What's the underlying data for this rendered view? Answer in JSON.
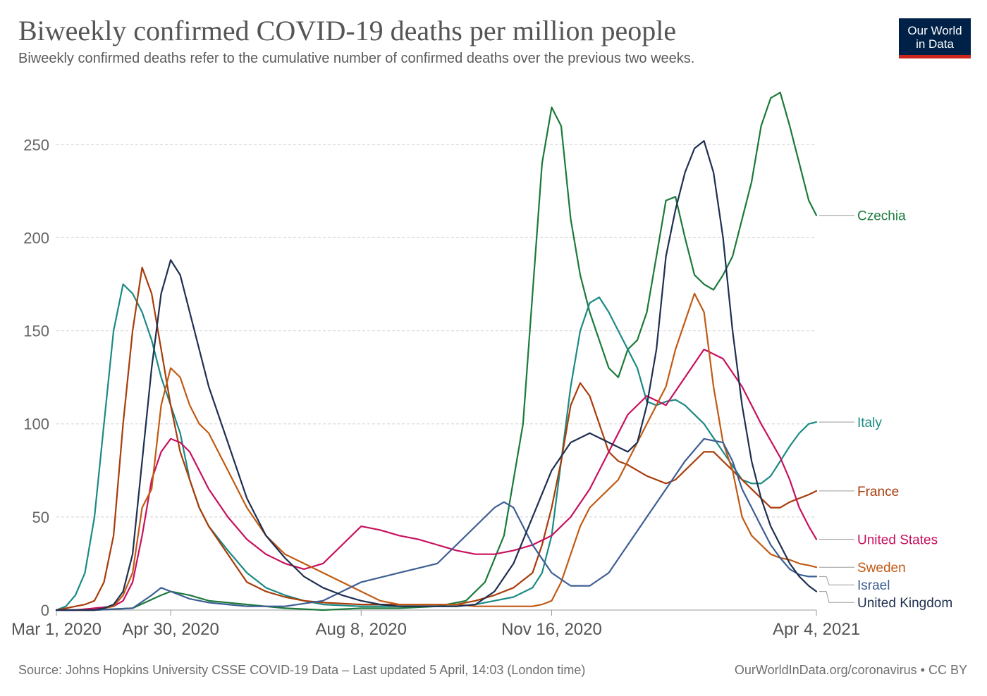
{
  "header": {
    "title": "Biweekly confirmed COVID-19 deaths per million people",
    "subtitle": "Biweekly confirmed deaths refer to the cumulative number of confirmed deaths over the previous two weeks."
  },
  "logo": {
    "line1": "Our World",
    "line2": "in Data"
  },
  "footer": {
    "source": "Source: Johns Hopkins University CSSE COVID-19 Data – Last updated 5 April, 14:03 (London time)",
    "credit": "OurWorldInData.org/coronavirus • CC BY"
  },
  "chart_data": {
    "type": "line",
    "title": "Biweekly confirmed COVID-19 deaths per million people",
    "xlabel": "",
    "ylabel": "",
    "x_unit": "days since Mar 1, 2020",
    "xlim": [
      0,
      399
    ],
    "ylim": [
      0,
      280
    ],
    "yticks": [
      0,
      50,
      100,
      150,
      200,
      250
    ],
    "xticks": [
      {
        "day": 0,
        "label": "Mar 1, 2020"
      },
      {
        "day": 60,
        "label": "Apr 30, 2020"
      },
      {
        "day": 160,
        "label": "Aug 8, 2020"
      },
      {
        "day": 260,
        "label": "Nov 16, 2020"
      },
      {
        "day": 399,
        "label": "Apr 4, 2021"
      }
    ],
    "grid": true,
    "series": [
      {
        "name": "Czechia",
        "color": "#1a7a3a",
        "x": [
          0,
          20,
          40,
          55,
          60,
          70,
          80,
          100,
          120,
          140,
          160,
          180,
          200,
          215,
          225,
          235,
          245,
          250,
          255,
          260,
          265,
          270,
          275,
          280,
          285,
          290,
          295,
          300,
          305,
          310,
          315,
          320,
          325,
          330,
          335,
          340,
          345,
          350,
          355,
          360,
          365,
          370,
          375,
          380,
          385,
          390,
          395,
          399
        ],
        "y": [
          0,
          0,
          1,
          8,
          10,
          8,
          5,
          3,
          1,
          0,
          1,
          1,
          2,
          5,
          15,
          40,
          100,
          170,
          240,
          270,
          260,
          210,
          180,
          160,
          145,
          130,
          125,
          140,
          145,
          160,
          190,
          220,
          222,
          200,
          180,
          175,
          172,
          180,
          190,
          210,
          230,
          260,
          275,
          278,
          260,
          240,
          220,
          212
        ]
      },
      {
        "name": "Italy",
        "color": "#1b8a84",
        "x": [
          0,
          5,
          10,
          15,
          20,
          25,
          30,
          35,
          40,
          45,
          50,
          55,
          60,
          65,
          70,
          75,
          80,
          90,
          100,
          110,
          120,
          130,
          140,
          160,
          180,
          200,
          210,
          220,
          230,
          240,
          250,
          255,
          260,
          265,
          270,
          275,
          280,
          285,
          290,
          295,
          300,
          305,
          310,
          315,
          320,
          325,
          330,
          340,
          350,
          360,
          365,
          370,
          375,
          380,
          385,
          390,
          395,
          399
        ],
        "y": [
          0,
          2,
          8,
          20,
          50,
          100,
          150,
          175,
          170,
          160,
          145,
          125,
          110,
          95,
          70,
          55,
          45,
          32,
          20,
          12,
          8,
          5,
          3,
          2,
          2,
          2,
          2,
          3,
          5,
          7,
          12,
          20,
          40,
          80,
          120,
          150,
          165,
          168,
          160,
          150,
          140,
          130,
          112,
          110,
          112,
          113,
          110,
          100,
          85,
          70,
          68,
          68,
          72,
          80,
          88,
          95,
          100,
          101
        ]
      },
      {
        "name": "France",
        "color": "#a83c0a",
        "x": [
          0,
          5,
          10,
          15,
          20,
          25,
          30,
          35,
          40,
          45,
          50,
          55,
          60,
          65,
          70,
          75,
          80,
          90,
          100,
          110,
          120,
          130,
          140,
          160,
          180,
          200,
          210,
          220,
          230,
          240,
          250,
          255,
          260,
          265,
          270,
          275,
          280,
          285,
          290,
          295,
          300,
          305,
          310,
          315,
          320,
          325,
          330,
          335,
          340,
          345,
          350,
          355,
          360,
          365,
          370,
          375,
          380,
          385,
          390,
          395,
          399
        ],
        "y": [
          0,
          1,
          2,
          3,
          5,
          15,
          40,
          100,
          150,
          184,
          170,
          140,
          110,
          85,
          70,
          55,
          45,
          30,
          15,
          10,
          7,
          5,
          4,
          3,
          3,
          3,
          3,
          5,
          8,
          12,
          20,
          35,
          55,
          80,
          110,
          122,
          115,
          100,
          85,
          80,
          78,
          75,
          72,
          70,
          68,
          70,
          75,
          80,
          85,
          85,
          80,
          75,
          70,
          65,
          60,
          55,
          55,
          58,
          60,
          62,
          64
        ]
      },
      {
        "name": "United States",
        "color": "#c8105e",
        "x": [
          0,
          10,
          20,
          30,
          35,
          40,
          45,
          50,
          55,
          60,
          65,
          70,
          75,
          80,
          90,
          100,
          110,
          120,
          130,
          140,
          150,
          160,
          170,
          180,
          190,
          200,
          210,
          220,
          230,
          240,
          250,
          260,
          270,
          280,
          290,
          300,
          310,
          320,
          330,
          340,
          350,
          360,
          370,
          380,
          385,
          390,
          395,
          399
        ],
        "y": [
          0,
          0,
          1,
          2,
          5,
          15,
          40,
          70,
          85,
          92,
          90,
          85,
          75,
          65,
          50,
          38,
          30,
          25,
          22,
          25,
          35,
          45,
          43,
          40,
          38,
          35,
          32,
          30,
          30,
          32,
          35,
          40,
          50,
          65,
          85,
          105,
          115,
          110,
          125,
          140,
          135,
          120,
          100,
          82,
          70,
          55,
          45,
          38
        ]
      },
      {
        "name": "Sweden",
        "color": "#c05a14",
        "x": [
          0,
          10,
          20,
          30,
          35,
          40,
          45,
          50,
          55,
          60,
          65,
          70,
          75,
          80,
          90,
          100,
          110,
          120,
          130,
          140,
          150,
          160,
          170,
          180,
          190,
          200,
          210,
          220,
          230,
          240,
          250,
          255,
          260,
          265,
          270,
          275,
          280,
          285,
          290,
          295,
          300,
          305,
          310,
          315,
          320,
          325,
          330,
          335,
          340,
          345,
          350,
          355,
          360,
          365,
          370,
          375,
          380,
          385,
          390,
          395,
          399
        ],
        "y": [
          0,
          0,
          0,
          2,
          8,
          20,
          55,
          65,
          110,
          130,
          125,
          110,
          100,
          95,
          75,
          55,
          40,
          30,
          25,
          20,
          15,
          10,
          5,
          3,
          3,
          3,
          3,
          2,
          2,
          2,
          2,
          3,
          5,
          15,
          30,
          45,
          55,
          60,
          65,
          70,
          80,
          90,
          100,
          110,
          120,
          140,
          155,
          170,
          160,
          120,
          90,
          75,
          50,
          40,
          35,
          30,
          28,
          27,
          25,
          24,
          23
        ]
      },
      {
        "name": "Israel",
        "color": "#3d5e93",
        "x": [
          0,
          20,
          40,
          50,
          55,
          60,
          70,
          80,
          90,
          100,
          120,
          140,
          160,
          180,
          200,
          220,
          230,
          235,
          240,
          250,
          260,
          270,
          280,
          290,
          300,
          310,
          320,
          330,
          340,
          350,
          355,
          360,
          365,
          370,
          375,
          380,
          385,
          390,
          395,
          399
        ],
        "y": [
          0,
          0,
          1,
          8,
          12,
          10,
          6,
          4,
          3,
          2,
          2,
          5,
          15,
          20,
          25,
          45,
          55,
          58,
          55,
          35,
          20,
          13,
          13,
          20,
          35,
          50,
          65,
          80,
          92,
          90,
          80,
          65,
          55,
          45,
          35,
          28,
          22,
          19,
          18,
          18
        ]
      },
      {
        "name": "United Kingdom",
        "color": "#1e2f50",
        "x": [
          0,
          10,
          20,
          25,
          30,
          35,
          40,
          45,
          50,
          55,
          60,
          65,
          70,
          75,
          80,
          90,
          100,
          110,
          120,
          130,
          140,
          150,
          160,
          170,
          180,
          190,
          200,
          210,
          220,
          230,
          240,
          250,
          260,
          270,
          280,
          290,
          300,
          305,
          310,
          315,
          320,
          325,
          330,
          335,
          340,
          345,
          350,
          355,
          360,
          365,
          370,
          375,
          380,
          385,
          390,
          395,
          399
        ],
        "y": [
          0,
          0,
          0,
          1,
          3,
          10,
          30,
          80,
          130,
          170,
          188,
          180,
          160,
          140,
          120,
          90,
          60,
          40,
          28,
          18,
          12,
          8,
          5,
          3,
          2,
          2,
          2,
          2,
          3,
          10,
          25,
          50,
          75,
          90,
          95,
          90,
          85,
          90,
          110,
          140,
          190,
          215,
          235,
          248,
          252,
          235,
          200,
          150,
          110,
          80,
          60,
          45,
          35,
          25,
          18,
          13,
          10
        ]
      }
    ]
  }
}
